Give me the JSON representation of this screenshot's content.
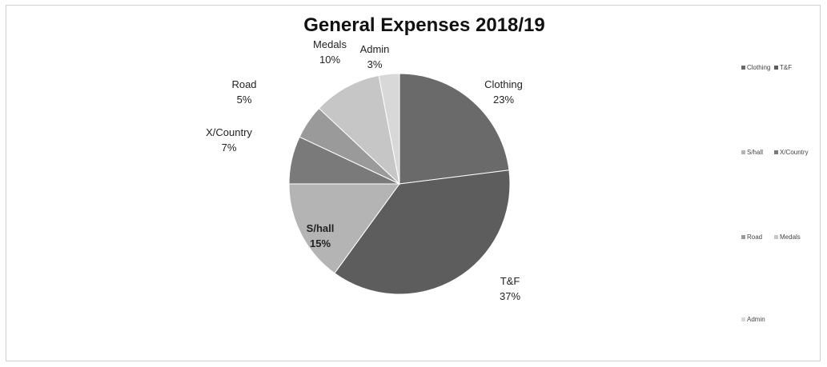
{
  "chart_data": {
    "type": "pie",
    "title": "General Expenses 2018/19",
    "categories": [
      "Clothing",
      "T&F",
      "S/hall",
      "X/Country",
      "Road",
      "Medals",
      "Admin"
    ],
    "values": [
      23,
      37,
      15,
      7,
      5,
      10,
      3
    ],
    "value_labels": [
      "23%",
      "37%",
      "15%",
      "7%",
      "5%",
      "10%",
      "3%"
    ],
    "colors": [
      "#6a6a6a",
      "#5d5d5d",
      "#b4b4b4",
      "#7a7a7a",
      "#9a9a9a",
      "#c6c6c6",
      "#d8d8d8"
    ],
    "start_angle_deg": 0,
    "direction": "clockwise",
    "legend": {
      "position": "right",
      "entries": [
        "Clothing",
        "T&F",
        "S/hall",
        "X/Country",
        "Road",
        "Medals",
        "Admin"
      ]
    }
  }
}
